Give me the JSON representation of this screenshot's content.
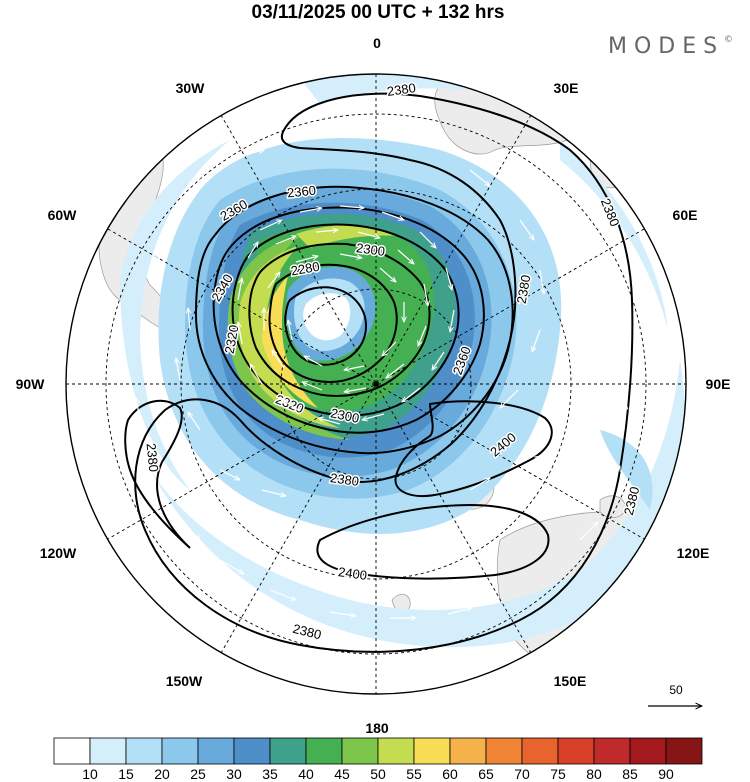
{
  "title": "03/11/2025  00 UTC  + 132 hrs",
  "brand": "MODES",
  "brand_mark": "©",
  "longitude_labels": {
    "top": "0",
    "e30": "30E",
    "e60": "60E",
    "e90": "90E",
    "e120": "120E",
    "e150": "150E",
    "bottom": "180",
    "w150": "150W",
    "w120": "120W",
    "w90": "90W",
    "w60": "60W",
    "w30": "30W"
  },
  "contour_labels": {
    "c2380_top": "2380",
    "c2360_a": "2360",
    "c2360_b": "2360",
    "c2340": "2340",
    "c2320_a": "2320",
    "c2320_b": "2320",
    "c2300_a": "2300",
    "c2300_b": "2300",
    "c2280": "2280",
    "c2380_a": "2380",
    "c2380_b": "2380",
    "c2380_c": "2380",
    "c2380_d": "2380",
    "c2380_e": "2380",
    "c2360_c": "2360",
    "c2400_a": "2400",
    "c2400_b": "2400",
    "c2380_f": "2380"
  },
  "reference_vector": "50",
  "colorbar": {
    "ticks": [
      "10",
      "15",
      "20",
      "25",
      "30",
      "35",
      "40",
      "45",
      "50",
      "55",
      "60",
      "65",
      "70",
      "75",
      "80",
      "85",
      "90"
    ],
    "colors": [
      "#ffffff",
      "#d4effb",
      "#b4e0f7",
      "#8cc7ec",
      "#69aadc",
      "#4f8fc9",
      "#3fa08c",
      "#45b052",
      "#7ec64b",
      "#c4dc50",
      "#f8dd57",
      "#f5b14a",
      "#ef8434",
      "#e8632d",
      "#d8402a",
      "#c12a2a",
      "#a3191d",
      "#861616"
    ]
  },
  "chart_data": {
    "type": "polar stereographic map (south pole)",
    "fields": [
      "wind speed shading (m/s)",
      "geopotential height contours (dam)",
      "wind vectors"
    ],
    "contour_levels": [
      2280,
      2300,
      2320,
      2340,
      2360,
      2380,
      2400
    ],
    "shading_range": [
      10,
      90
    ],
    "shading_interval": 5,
    "valid": "03/11/2025 00 UTC",
    "forecast_hour": 132
  }
}
